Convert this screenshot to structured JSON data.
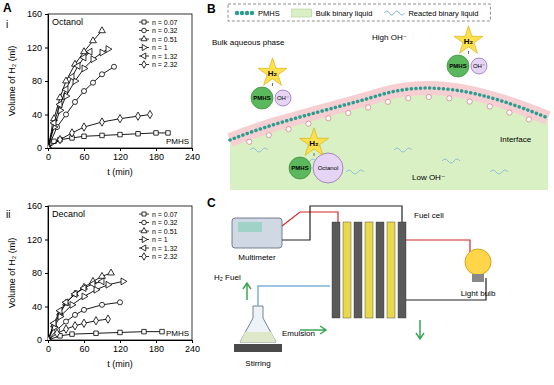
{
  "panel_labels": [
    "A",
    "B",
    "C"
  ],
  "subpanel_labels": [
    "i",
    "ii"
  ],
  "chart_data": [
    {
      "type": "line",
      "x_label": "t (min)",
      "y_label": "Volume of H₂ (ml)",
      "annotations": [
        "Octanol",
        "PMHS"
      ],
      "xlim": [
        0,
        240
      ],
      "xticks": [
        0,
        60,
        120,
        180,
        240
      ],
      "ylim": [
        0,
        160
      ],
      "yticks": [
        0,
        40,
        80,
        120,
        160
      ],
      "grid": false,
      "legend": "upper right",
      "series": [
        {
          "name": "n = 0.07",
          "color": "#000000",
          "marker": "square",
          "line_style": "solid",
          "x": [
            0,
            10,
            20,
            40,
            60,
            90,
            120,
            150,
            180,
            200
          ],
          "values": [
            0,
            8,
            10,
            12,
            14,
            15,
            16,
            17,
            18,
            18
          ]
        },
        {
          "name": "n = 0.32",
          "color": "#000000",
          "marker": "circle",
          "line_style": "solid",
          "x": [
            0,
            15,
            30,
            45,
            60,
            75,
            90,
            110
          ],
          "values": [
            0,
            25,
            40,
            55,
            68,
            78,
            88,
            97
          ]
        },
        {
          "name": "n = 0.51",
          "color": "#000000",
          "marker": "triangle-up",
          "line_style": "solid",
          "x": [
            0,
            10,
            20,
            30,
            45,
            60,
            75,
            90
          ],
          "values": [
            0,
            35,
            60,
            80,
            100,
            115,
            128,
            140
          ]
        },
        {
          "name": "n = 1",
          "color": "#000000",
          "marker": "triangle-right",
          "line_style": "solid",
          "x": [
            0,
            10,
            20,
            30,
            45,
            60,
            75,
            90,
            100
          ],
          "values": [
            0,
            25,
            45,
            62,
            80,
            95,
            106,
            114,
            118
          ]
        },
        {
          "name": "n = 1.32",
          "color": "#000000",
          "marker": "triangle-left",
          "line_style": "solid",
          "x": [
            0,
            10,
            20,
            30,
            40,
            50,
            60,
            70
          ],
          "values": [
            0,
            30,
            52,
            70,
            85,
            98,
            108,
            115
          ]
        },
        {
          "name": "n = 2.32",
          "color": "#000000",
          "marker": "diamond",
          "line_style": "solid",
          "x": [
            0,
            20,
            40,
            60,
            90,
            120,
            150,
            170
          ],
          "values": [
            0,
            10,
            18,
            25,
            31,
            35,
            38,
            40
          ]
        }
      ]
    },
    {
      "type": "line",
      "x_label": "t (min)",
      "y_label": "Volume of H₂ (ml)",
      "annotations": [
        "Decanol",
        "PMHS"
      ],
      "xlim": [
        0,
        240
      ],
      "xticks": [
        0,
        60,
        120,
        180,
        240
      ],
      "ylim": [
        0,
        160
      ],
      "yticks": [
        0,
        40,
        80,
        120,
        160
      ],
      "grid": false,
      "legend": "upper right",
      "series": [
        {
          "name": "n = 0.07",
          "color": "#000000",
          "marker": "square",
          "line_style": "solid",
          "x": [
            0,
            20,
            40,
            80,
            120,
            160,
            190
          ],
          "values": [
            0,
            5,
            7,
            8,
            9,
            10,
            10
          ]
        },
        {
          "name": "n = 0.32",
          "color": "#000000",
          "marker": "circle",
          "line_style": "solid",
          "x": [
            0,
            15,
            30,
            45,
            60,
            90,
            120
          ],
          "values": [
            0,
            12,
            22,
            30,
            36,
            42,
            45
          ]
        },
        {
          "name": "n = 0.51",
          "color": "#000000",
          "marker": "triangle-up",
          "line_style": "solid",
          "x": [
            0,
            10,
            20,
            30,
            45,
            60,
            75,
            90,
            105
          ],
          "values": [
            0,
            18,
            32,
            44,
            55,
            63,
            70,
            76,
            80
          ]
        },
        {
          "name": "n = 1",
          "color": "#000000",
          "marker": "triangle-right",
          "line_style": "solid",
          "x": [
            0,
            10,
            20,
            40,
            60,
            80,
            100,
            125
          ],
          "values": [
            0,
            15,
            28,
            42,
            52,
            60,
            66,
            70
          ]
        },
        {
          "name": "n = 1.32",
          "color": "#000000",
          "marker": "triangle-left",
          "line_style": "solid",
          "x": [
            0,
            10,
            20,
            30,
            45,
            60,
            75,
            90
          ],
          "values": [
            0,
            20,
            35,
            45,
            55,
            62,
            67,
            70
          ]
        },
        {
          "name": "n = 2.32",
          "color": "#000000",
          "marker": "diamond",
          "line_style": "solid",
          "x": [
            0,
            15,
            30,
            45,
            60,
            80,
            100
          ],
          "values": [
            0,
            8,
            13,
            17,
            20,
            23,
            25
          ]
        }
      ]
    }
  ],
  "diagram_b": {
    "key": [
      "PMHS",
      "Bulk binary liquid",
      "Reacted binary liquid"
    ],
    "bulk_label": "Bulk aqueous phase",
    "high_label": "High OH⁻",
    "low_label": "Low OH⁻",
    "interface_label": "Interface",
    "reactions": [
      {
        "reactants": [
          "PMHS",
          "OH⁻"
        ],
        "product": "H₂"
      },
      {
        "reactants": [
          "PMHS",
          "OH⁻"
        ],
        "product": "H₂"
      },
      {
        "reactants": [
          "PMHS",
          "Octanol"
        ],
        "product": "H₂"
      }
    ]
  },
  "diagram_c": {
    "multimeter": "Multimeter",
    "fuel_cell": "Fuel cell",
    "light_bulb": "Light bulb",
    "fuel": "H₂ Fuel",
    "emulsion": "Emulsion",
    "stirring": "Stirring"
  }
}
